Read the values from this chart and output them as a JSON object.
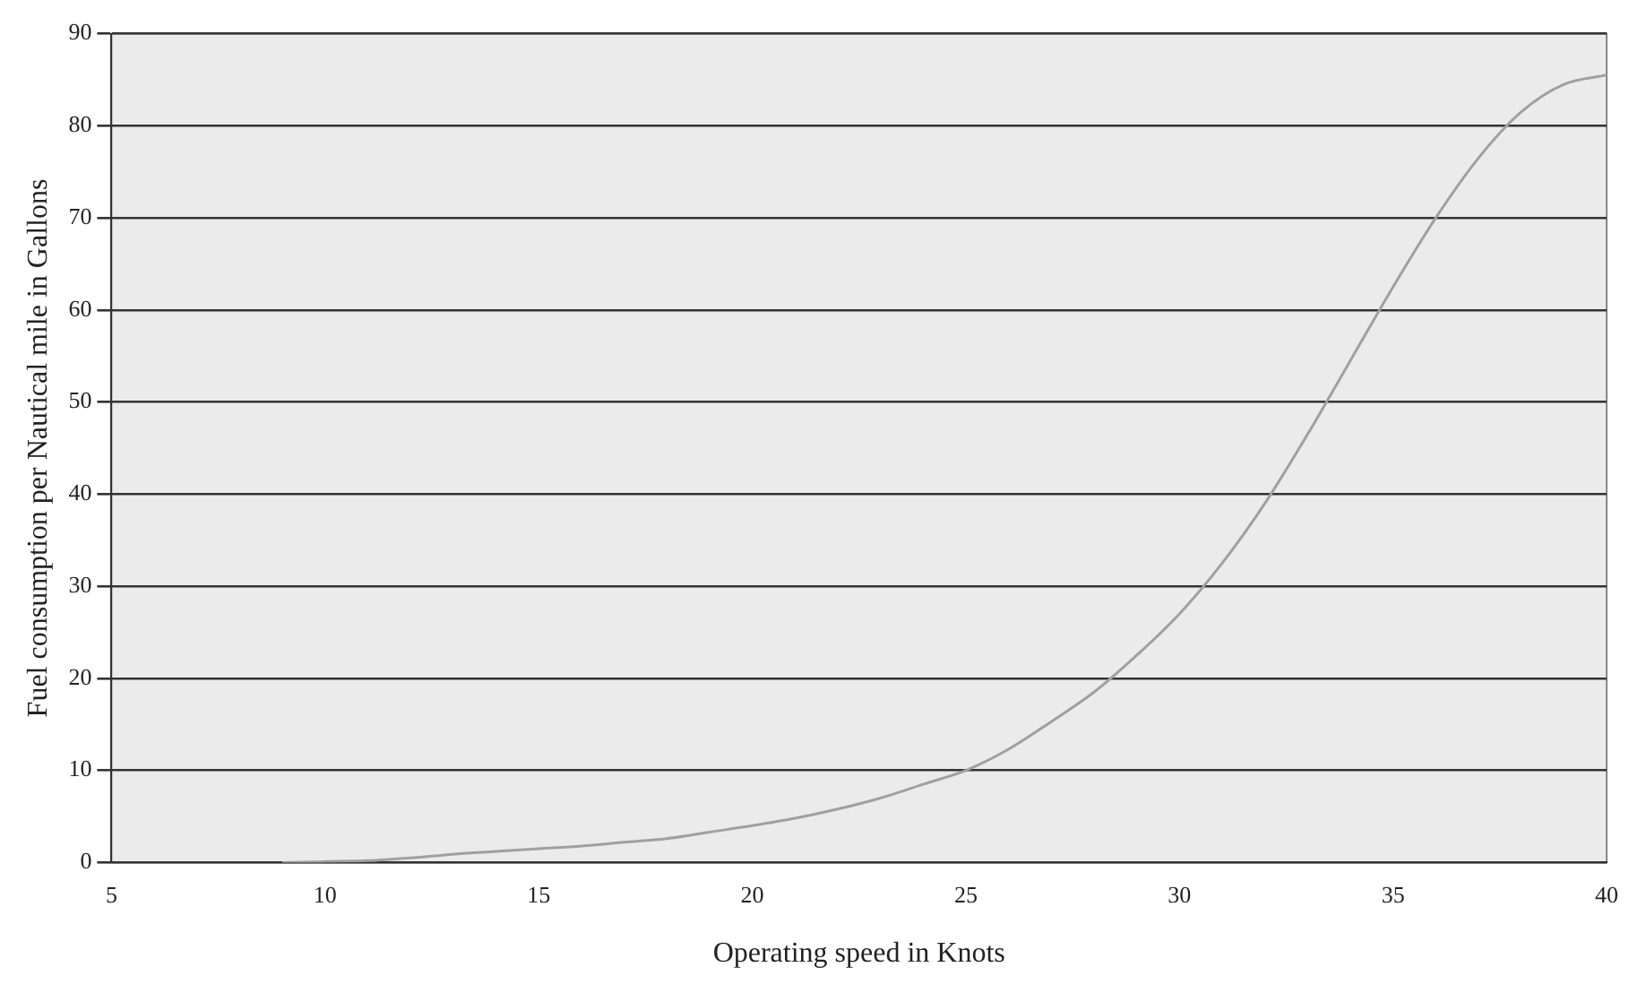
{
  "chart_data": {
    "type": "line",
    "xlabel": "Operating speed in Knots",
    "ylabel": "Fuel consumption per Nautical mile in Gallons",
    "x": [
      9,
      10,
      11,
      12,
      13,
      14,
      15,
      16,
      17,
      18,
      19,
      20,
      21,
      22,
      23,
      24,
      25,
      26,
      27,
      28,
      29,
      30,
      31,
      32,
      33,
      34,
      35,
      36,
      37,
      38,
      39,
      40
    ],
    "series": [
      {
        "color": "#a0a0a0",
        "values": [
          0,
          0.1,
          0.2,
          0.5,
          0.9,
          1.2,
          1.5,
          1.8,
          2.2,
          2.6,
          3.3,
          4,
          4.8,
          5.8,
          7,
          8.5,
          10,
          12.3,
          15.3,
          18.5,
          22.5,
          27,
          32.5,
          39,
          46.5,
          54.5,
          62.5,
          70,
          76.5,
          81.5,
          84.5,
          85.5
        ]
      }
    ],
    "xlim": [
      5,
      40
    ],
    "xticks": [
      5,
      10,
      15,
      20,
      25,
      30,
      35,
      40
    ],
    "ylim": [
      0,
      90
    ],
    "yticks": [
      0,
      10,
      20,
      30,
      40,
      50,
      60,
      70,
      80,
      90
    ],
    "grid": "y",
    "legend": false,
    "marker": "none",
    "line_style": "solid"
  }
}
